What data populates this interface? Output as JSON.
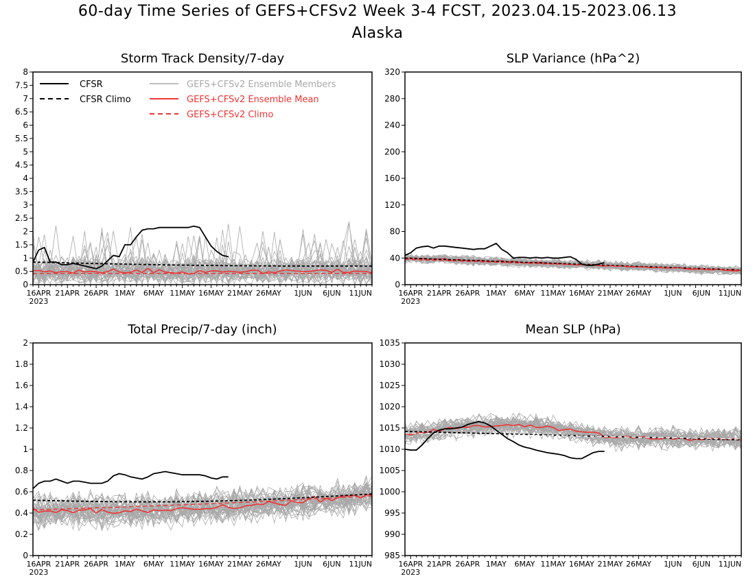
{
  "title_line1": "60-day Time Series of GEFS+CFSv2 Week 3-4 FCST, 2023.04.15-2023.06.13",
  "title_line2": "Alaska",
  "colors": {
    "cfsr": "#000000",
    "members": "#a8a8a8",
    "ens_mean": "#ee3333",
    "axis": "#000000"
  },
  "legend": {
    "cfsr": "CFSR",
    "cfsr_climo": "CFSR Climo",
    "members": "GEFS+CFSv2 Ensemble Members",
    "ens_mean": "GEFS+CFSv2 Ensemble Mean",
    "ens_climo": "GEFS+CFSv2 Climo",
    "placement": "top-left of first panel"
  },
  "x_ticks": [
    "16APR",
    "21APR",
    "26APR",
    "1MAY",
    "6MAY",
    "11MAY",
    "16MAY",
    "21MAY",
    "26MAY",
    "1JUN",
    "6JUN",
    "11JUN"
  ],
  "x_year": "2023",
  "chart_data": [
    {
      "type": "line",
      "title": "Storm Track Density/7-day",
      "x": "days from 2023-04-15 to 2023-06-13",
      "ylim": [
        0,
        8
      ],
      "yticks": [
        "0",
        "0.5",
        "1",
        "1.5",
        "2",
        "2.5",
        "3",
        "3.5",
        "4",
        "4.5",
        "5",
        "5.5",
        "6",
        "6.5",
        "7",
        "7.5",
        "8"
      ],
      "series": [
        {
          "name": "CFSR",
          "style": "solid-black",
          "values": [
            0.85,
            1.3,
            1.4,
            0.85,
            0.85,
            0.75,
            0.75,
            0.8,
            0.75,
            0.7,
            0.65,
            0.6,
            0.7,
            0.9,
            1.1,
            1.05,
            1.5,
            1.5,
            1.8,
            2.05,
            2.1,
            2.1,
            2.15,
            2.15,
            2.15,
            2.15,
            2.15,
            2.15,
            2.2,
            2.15,
            1.8,
            1.45,
            1.25,
            1.1,
            1.05
          ]
        },
        {
          "name": "CFSR Climo",
          "style": "dashed-black",
          "start": 0.85,
          "end": 0.7,
          "min": 0.65
        },
        {
          "name": "GEFS+CFSv2 Ensemble Mean",
          "style": "solid-red",
          "level": 0.5
        },
        {
          "name": "GEFS+CFSv2 Climo",
          "style": "dashed-red",
          "level": 0.42
        }
      ]
    },
    {
      "type": "line",
      "title": "SLP Variance (hPa^2)",
      "x": "days from 2023-04-15 to 2023-06-13",
      "ylim": [
        0,
        320
      ],
      "yticks": [
        "0",
        "40",
        "80",
        "120",
        "160",
        "200",
        "240",
        "280",
        "320"
      ],
      "series": [
        {
          "name": "CFSR",
          "style": "solid-black",
          "values": [
            44,
            48,
            55,
            57,
            58,
            55,
            58,
            58,
            57,
            56,
            55,
            54,
            53,
            54,
            54,
            58,
            62,
            53,
            48,
            40,
            41,
            41,
            40,
            41,
            40,
            41,
            40,
            40,
            41,
            42,
            38,
            31,
            29,
            29,
            31,
            33
          ]
        },
        {
          "name": "CFSR Climo",
          "style": "dashed-black",
          "start": 40,
          "end": 22
        },
        {
          "name": "GEFS+CFSv2 Ensemble Mean",
          "style": "solid-red",
          "start": 40,
          "end": 21
        },
        {
          "name": "GEFS+CFSv2 Climo",
          "style": "dashed-red",
          "start": 38,
          "end": 22
        }
      ]
    },
    {
      "type": "line",
      "title": "Total Precip/7-day (inch)",
      "x": "days from 2023-04-15 to 2023-06-13",
      "ylim": [
        0,
        2
      ],
      "yticks": [
        "0",
        "0.2",
        "0.4",
        "0.6",
        "0.8",
        "1",
        "1.2",
        "1.4",
        "1.6",
        "1.8",
        "2"
      ],
      "series": [
        {
          "name": "CFSR",
          "style": "solid-black",
          "values": [
            0.63,
            0.68,
            0.7,
            0.7,
            0.72,
            0.7,
            0.68,
            0.7,
            0.7,
            0.69,
            0.68,
            0.68,
            0.68,
            0.7,
            0.75,
            0.77,
            0.76,
            0.74,
            0.73,
            0.72,
            0.74,
            0.77,
            0.78,
            0.79,
            0.78,
            0.77,
            0.76,
            0.76,
            0.76,
            0.76,
            0.75,
            0.73,
            0.72,
            0.74,
            0.74
          ]
        },
        {
          "name": "CFSR Climo",
          "style": "dashed-black",
          "start": 0.52,
          "end": 0.58,
          "min": 0.48
        },
        {
          "name": "GEFS+CFSv2 Ensemble Mean",
          "style": "solid-red",
          "start": 0.42,
          "end": 0.57,
          "min": 0.37
        },
        {
          "name": "GEFS+CFSv2 Climo",
          "style": "dashed-red",
          "start": 0.43,
          "end": 0.56,
          "min": 0.42
        }
      ]
    },
    {
      "type": "line",
      "title": "Mean SLP (hPa)",
      "x": "days from 2023-04-15 to 2023-06-13",
      "ylim": [
        985,
        1035
      ],
      "yticks": [
        "985",
        "990",
        "995",
        "1000",
        "1005",
        "1010",
        "1015",
        "1020",
        "1025",
        "1030",
        "1035"
      ],
      "series": [
        {
          "name": "CFSR",
          "style": "solid-black",
          "values": [
            1010,
            1009.8,
            1009.8,
            1011,
            1012.5,
            1013.8,
            1014.5,
            1014.8,
            1014.8,
            1015,
            1015.2,
            1015.8,
            1016.2,
            1016.5,
            1016.2,
            1015.5,
            1014.5,
            1013.5,
            1012.5,
            1011.8,
            1011,
            1010.5,
            1010.2,
            1009.8,
            1009.5,
            1009.2,
            1009,
            1008.8,
            1008.5,
            1008,
            1007.8,
            1007.8,
            1008.5,
            1009.2,
            1009.5,
            1009.5
          ]
        },
        {
          "name": "CFSR Climo",
          "style": "dashed-black",
          "start": 1014.2,
          "end": 1012.2
        },
        {
          "name": "GEFS+CFSv2 Ensemble Mean",
          "style": "solid-red",
          "start": 1013.5,
          "peak": 1016,
          "end": 1012.3
        },
        {
          "name": "GEFS+CFSv2 Climo",
          "style": "dashed-white",
          "start": 1013.8,
          "end": 1012.4
        }
      ]
    }
  ]
}
